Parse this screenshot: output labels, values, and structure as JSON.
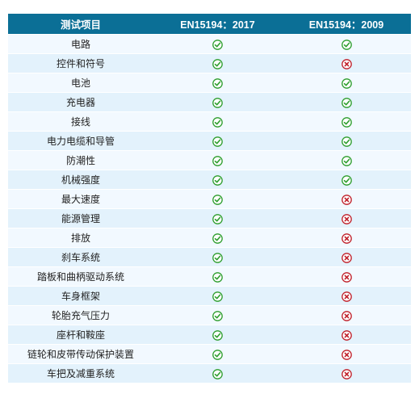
{
  "table": {
    "headers": [
      "测试项目",
      "EN15194：2017",
      "EN15194：2009"
    ],
    "rows": [
      {
        "item": "电路",
        "en2017": "check",
        "en2009": "check"
      },
      {
        "item": "控件和符号",
        "en2017": "check",
        "en2009": "cross"
      },
      {
        "item": "电池",
        "en2017": "check",
        "en2009": "check"
      },
      {
        "item": "充电器",
        "en2017": "check",
        "en2009": "check"
      },
      {
        "item": "接线",
        "en2017": "check",
        "en2009": "check"
      },
      {
        "item": "电力电缆和导管",
        "en2017": "check",
        "en2009": "check"
      },
      {
        "item": "防潮性",
        "en2017": "check",
        "en2009": "check"
      },
      {
        "item": "机械强度",
        "en2017": "check",
        "en2009": "check"
      },
      {
        "item": "最大速度",
        "en2017": "check",
        "en2009": "cross"
      },
      {
        "item": "能源管理",
        "en2017": "check",
        "en2009": "cross"
      },
      {
        "item": "排放",
        "en2017": "check",
        "en2009": "cross"
      },
      {
        "item": "刹车系统",
        "en2017": "check",
        "en2009": "cross"
      },
      {
        "item": "踏板和曲柄驱动系统",
        "en2017": "check",
        "en2009": "cross"
      },
      {
        "item": "车身框架",
        "en2017": "check",
        "en2009": "cross"
      },
      {
        "item": "轮胎充气压力",
        "en2017": "check",
        "en2009": "cross"
      },
      {
        "item": "座杆和鞍座",
        "en2017": "check",
        "en2009": "cross"
      },
      {
        "item": "链轮和皮带传动保护装置",
        "en2017": "check",
        "en2009": "cross"
      },
      {
        "item": "车把及减重系统",
        "en2017": "check",
        "en2009": "cross"
      }
    ]
  },
  "icons": {
    "check": "check-circle-icon",
    "cross": "cross-circle-icon"
  },
  "colors": {
    "header_bg": "#0b6f96",
    "header_text": "#ffffff",
    "row_light": "#f2f9ff",
    "row_dark": "#e3f2fc",
    "check_green": "#2e9e2e",
    "cross_red": "#c0202a"
  }
}
